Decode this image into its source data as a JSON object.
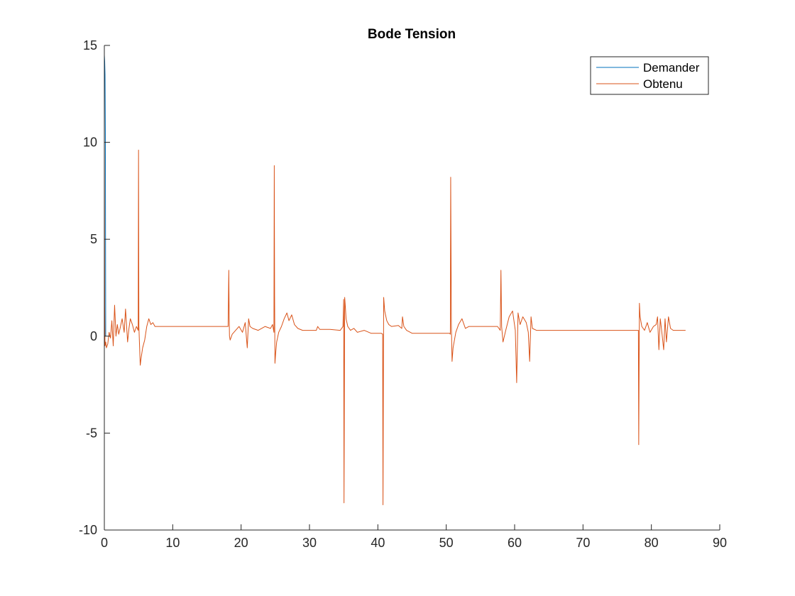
{
  "chart_data": {
    "type": "line",
    "title": "Bode Tension",
    "xlabel": "",
    "ylabel": "",
    "xlim": [
      0,
      90
    ],
    "ylim": [
      -10,
      15
    ],
    "xticks": [
      0,
      10,
      20,
      30,
      40,
      50,
      60,
      70,
      80,
      90
    ],
    "yticks": [
      -10,
      -5,
      0,
      5,
      10,
      15
    ],
    "grid": false,
    "box": false,
    "legend_location": "top-right",
    "series": [
      {
        "name": "Demander",
        "color": "#0072BD",
        "x": [
          0,
          0.05,
          0.1,
          0.15,
          0.2
        ],
        "y": [
          14.5,
          14.2,
          13.5,
          10.5,
          0
        ]
      },
      {
        "name": "Obtenu",
        "color": "#D95319",
        "x": [
          0,
          0.05,
          0.1,
          0.2,
          0.3,
          0.5,
          0.7,
          0.9,
          1.1,
          1.3,
          1.5,
          1.7,
          1.9,
          2.1,
          2.3,
          2.6,
          2.9,
          3.1,
          3.4,
          3.6,
          3.8,
          4.1,
          4.4,
          4.7,
          4.95,
          5.0,
          5.05,
          5.15,
          5.25,
          5.35,
          5.6,
          5.9,
          6.2,
          6.5,
          6.8,
          7.1,
          7.4,
          7.8,
          8.2,
          10,
          14,
          18.1,
          18.2,
          18.25,
          18.3,
          18.4,
          18.7,
          19.2,
          19.7,
          20.2,
          20.6,
          20.9,
          21.1,
          21.3,
          21.7,
          22.5,
          23.5,
          24.3,
          24.6,
          24.8,
          24.85,
          24.9,
          24.95,
          25.05,
          25.2,
          25.5,
          25.9,
          26.3,
          26.7,
          27.0,
          27.4,
          27.8,
          28.3,
          29,
          30,
          31,
          31.2,
          31.5,
          33,
          34.5,
          34.9,
          35.0,
          35.05,
          35.15,
          35.25,
          35.35,
          35.6,
          36.0,
          36.5,
          37,
          38,
          39,
          40.5,
          40.7,
          40.75,
          40.85,
          41.0,
          41.3,
          41.6,
          42,
          43,
          43.5,
          43.6,
          43.8,
          44.2,
          45,
          47,
          49,
          50.5,
          50.6,
          50.65,
          50.75,
          50.85,
          51.0,
          51.4,
          51.8,
          52.3,
          52.8,
          53.3,
          53.8,
          54.5,
          56,
          57.5,
          57.9,
          58.0,
          58.1,
          58.3,
          58.7,
          59.2,
          59.7,
          60.1,
          60.3,
          60.5,
          60.8,
          61.2,
          61.7,
          62.0,
          62.2,
          62.4,
          62.6,
          63.2,
          65,
          70,
          75,
          78.0,
          78.1,
          78.15,
          78.25,
          78.35,
          78.6,
          79.0,
          79.4,
          79.8,
          80.3,
          80.7,
          80.9,
          81.1,
          81.3,
          81.5,
          81.8,
          82.0,
          82.2,
          82.5,
          82.8,
          83.2,
          84,
          85
        ],
        "y": [
          10,
          1.5,
          -0.5,
          -0.3,
          -0.6,
          -0.4,
          0.2,
          -0.1,
          0.8,
          -0.5,
          1.6,
          0,
          0.6,
          0.1,
          0.4,
          0.9,
          0.2,
          1.4,
          -0.3,
          0.4,
          0.9,
          0.6,
          0.2,
          0.5,
          0.3,
          9.6,
          0.5,
          -0.5,
          -1.5,
          -1.2,
          -0.6,
          -0.2,
          0.5,
          0.9,
          0.6,
          0.7,
          0.5,
          0.5,
          0.5,
          0.5,
          0.5,
          0.5,
          3.4,
          1.2,
          0,
          -0.2,
          0.1,
          0.3,
          0.5,
          0.2,
          0.7,
          -0.6,
          0.9,
          0.5,
          0.4,
          0.3,
          0.5,
          0.4,
          0.6,
          0.2,
          8.8,
          2.0,
          -1.4,
          -0.9,
          -0.3,
          0.2,
          0.5,
          0.9,
          1.2,
          0.8,
          1.1,
          0.6,
          0.4,
          0.3,
          0.3,
          0.3,
          0.5,
          0.35,
          0.35,
          0.3,
          0.5,
          1.9,
          -8.6,
          2.0,
          1.5,
          0.9,
          0.5,
          0.3,
          0.4,
          0.2,
          0.3,
          0.15,
          0.15,
          0.1,
          -8.7,
          2.0,
          1.3,
          0.8,
          0.6,
          0.5,
          0.55,
          0.4,
          1.0,
          0.5,
          0.3,
          0.15,
          0.15,
          0.15,
          0.15,
          0.1,
          8.2,
          0.6,
          -1.3,
          -0.6,
          0.2,
          0.6,
          0.9,
          0.4,
          0.5,
          0.5,
          0.5,
          0.5,
          0.5,
          0.3,
          3.4,
          0.5,
          -0.3,
          0.3,
          1.0,
          1.3,
          0.3,
          -2.4,
          1.2,
          0.6,
          1.0,
          0.7,
          0.2,
          -1.3,
          1.0,
          0.4,
          0.3,
          0.3,
          0.3,
          0.3,
          0.3,
          0.3,
          -5.6,
          1.7,
          1.0,
          0.5,
          0.3,
          0.7,
          0.2,
          0.5,
          0.6,
          1.0,
          -0.7,
          0.9,
          0.3,
          -0.7,
          0.9,
          -0.3,
          1.0,
          0.4,
          0.3,
          0.3,
          0.3
        ]
      }
    ]
  }
}
